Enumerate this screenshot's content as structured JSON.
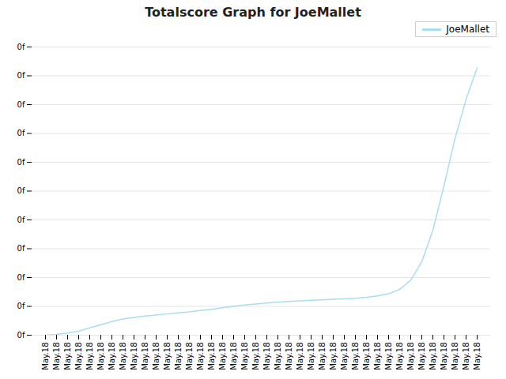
{
  "chart_data": {
    "type": "line",
    "title": "Totalscore Graph for JoeMallet",
    "categories": [
      "May.18",
      "May.18",
      "May.18",
      "May.18",
      "May.18",
      "May.18",
      "May.18",
      "May.18",
      "May.18",
      "May.18",
      "May.18",
      "May.18",
      "May.18",
      "May.18",
      "May.18",
      "May.18",
      "May.18",
      "May.18",
      "May.18",
      "May.18",
      "May.18",
      "May.18",
      "May.18",
      "May.18",
      "May.18",
      "May.18",
      "May.18",
      "May.18",
      "May.18",
      "May.18",
      "May.18",
      "May.18",
      "May.18",
      "May.18",
      "May.18",
      "May.18",
      "May.18",
      "May.18",
      "May.18",
      "May.18"
    ],
    "series": [
      {
        "name": "JoeMallet",
        "color": "#aaddee",
        "values": [
          0,
          3,
          8,
          15,
          28,
          40,
          52,
          62,
          68,
          73,
          77,
          81,
          85,
          89,
          94,
          99,
          105,
          110,
          115,
          119,
          123,
          126,
          129,
          131,
          133,
          135,
          137,
          139,
          141,
          145,
          150,
          158,
          175,
          210,
          280,
          400,
          570,
          750,
          900,
          1020
        ]
      }
    ],
    "ylim": [
      0,
      1100
    ],
    "yticks": [
      {
        "value": 0,
        "label": "0f"
      },
      {
        "value": 110,
        "label": "0f"
      },
      {
        "value": 220,
        "label": "0f"
      },
      {
        "value": 330,
        "label": "0f"
      },
      {
        "value": 440,
        "label": "0f"
      },
      {
        "value": 550,
        "label": "0f"
      },
      {
        "value": 660,
        "label": "0f"
      },
      {
        "value": 770,
        "label": "0f"
      },
      {
        "value": 880,
        "label": "0f"
      },
      {
        "value": 990,
        "label": "0f"
      },
      {
        "value": 1100,
        "label": "0f"
      }
    ],
    "grid": true,
    "legend": "upper right"
  }
}
